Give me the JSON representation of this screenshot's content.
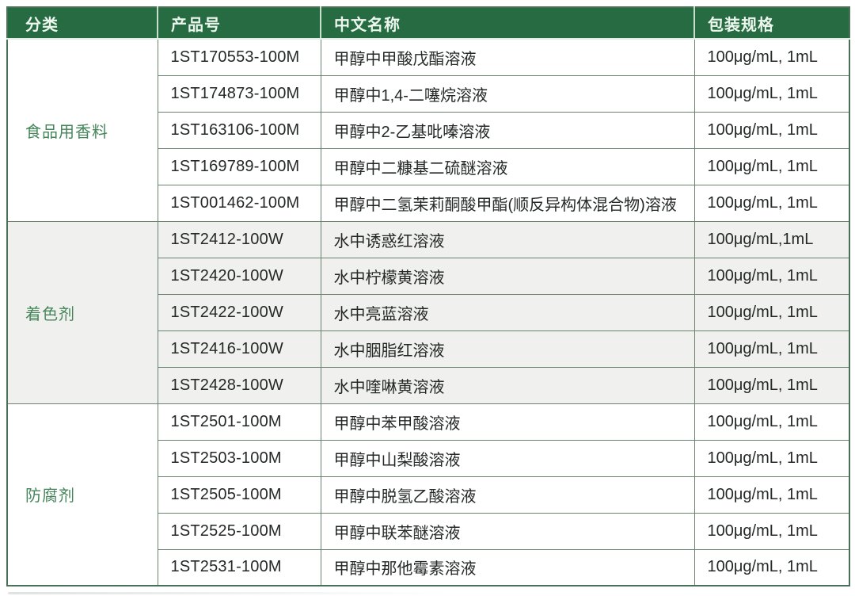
{
  "colors": {
    "header_bg": "#266b41",
    "header_text": "#edf6ee",
    "category_text": "#46855a",
    "alt_group_bg": "#f0f1ee",
    "grid_border": "#69836f",
    "body_text": "#242827"
  },
  "table": {
    "headers": [
      "分类",
      "产品号",
      "中文名称",
      "包装规格"
    ],
    "groups": [
      {
        "category": "食品用香料",
        "rows": [
          {
            "product_no": "1ST170553-100M",
            "name": "甲醇中甲酸戊酯溶液",
            "spec": "100μg/mL, 1mL"
          },
          {
            "product_no": "1ST174873-100M",
            "name": "甲醇中1,4-二噻烷溶液",
            "spec": "100μg/mL, 1mL"
          },
          {
            "product_no": "1ST163106-100M",
            "name": "甲醇中2-乙基吡嗪溶液",
            "spec": "100μg/mL, 1mL"
          },
          {
            "product_no": "1ST169789-100M",
            "name": "甲醇中二糠基二硫醚溶液",
            "spec": "100μg/mL, 1mL"
          },
          {
            "product_no": "1ST001462-100M",
            "name": "甲醇中二氢茉莉酮酸甲酯(顺反异构体混合物)溶液",
            "spec": "100μg/mL, 1mL"
          }
        ]
      },
      {
        "category": "着色剂",
        "rows": [
          {
            "product_no": "1ST2412-100W",
            "name": "水中诱惑红溶液",
            "spec": "100μg/mL,1mL"
          },
          {
            "product_no": "1ST2420-100W",
            "name": "水中柠檬黄溶液",
            "spec": "100μg/mL, 1mL"
          },
          {
            "product_no": "1ST2422-100W",
            "name": "水中亮蓝溶液",
            "spec": "100μg/mL, 1mL"
          },
          {
            "product_no": "1ST2416-100W",
            "name": "水中胭脂红溶液",
            "spec": "100μg/mL, 1mL"
          },
          {
            "product_no": "1ST2428-100W",
            "name": "水中喹啉黄溶液",
            "spec": "100μg/mL, 1mL"
          }
        ]
      },
      {
        "category": "防腐剂",
        "rows": [
          {
            "product_no": "1ST2501-100M",
            "name": "甲醇中苯甲酸溶液",
            "spec": "100μg/mL, 1mL"
          },
          {
            "product_no": "1ST2503-100M",
            "name": "甲醇中山梨酸溶液",
            "spec": "100μg/mL, 1mL"
          },
          {
            "product_no": "1ST2505-100M",
            "name": "甲醇中脱氢乙酸溶液",
            "spec": "100μg/mL, 1mL"
          },
          {
            "product_no": "1ST2525-100M",
            "name": "甲醇中联苯醚溶液",
            "spec": "100μg/mL, 1mL"
          },
          {
            "product_no": "1ST2531-100M",
            "name": "甲醇中那他霉素溶液",
            "spec": "100μg/mL, 1mL"
          }
        ]
      }
    ]
  }
}
